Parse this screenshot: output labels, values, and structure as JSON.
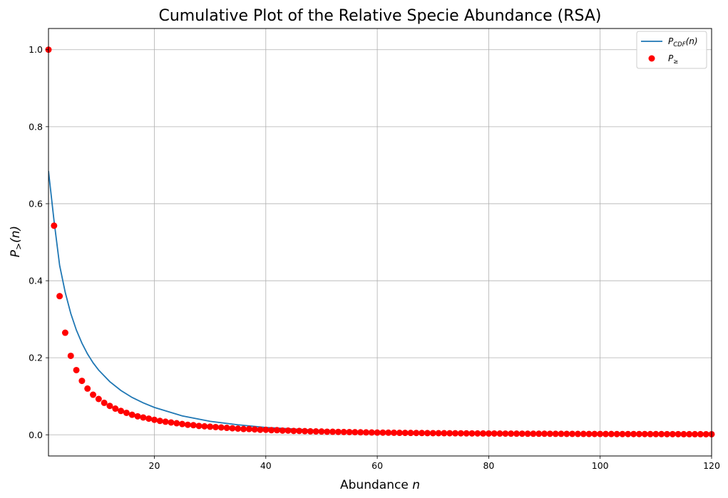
{
  "chart_data": {
    "type": "scatter",
    "title": "Cumulative Plot of the Relative Specie Abundance (RSA)",
    "xlabel_text": "Abundance ",
    "xlabel_var": "n",
    "ylabel_main": "P",
    "ylabel_sub": ">",
    "ylabel_arg": "(n)",
    "xlim": [
      1,
      120
    ],
    "ylim": [
      -0.055,
      1.055
    ],
    "x_ticks": [
      20,
      40,
      60,
      80,
      100,
      120
    ],
    "y_ticks": [
      0.0,
      0.2,
      0.4,
      0.6,
      0.8,
      1.0
    ],
    "x_tick_labels": [
      "20",
      "40",
      "60",
      "80",
      "100",
      "120"
    ],
    "y_tick_labels": [
      "0.0",
      "0.2",
      "0.4",
      "0.6",
      "0.8",
      "1.0"
    ],
    "grid": true,
    "legend_position": "top-right",
    "series": [
      {
        "kind": "line",
        "color": "#1f77b4",
        "legend_main": "P",
        "legend_sub": "CDF",
        "legend_arg": "(n)",
        "x": [
          1,
          2,
          3,
          4,
          5,
          6,
          7,
          8,
          9,
          10,
          12,
          14,
          16,
          18,
          20,
          25,
          30,
          35,
          40,
          45,
          50,
          60,
          70,
          80,
          90,
          100,
          110,
          120
        ],
        "y": [
          0.685,
          0.555,
          0.44,
          0.37,
          0.315,
          0.272,
          0.238,
          0.21,
          0.187,
          0.168,
          0.138,
          0.115,
          0.097,
          0.083,
          0.071,
          0.049,
          0.035,
          0.026,
          0.019,
          0.015,
          0.011,
          0.007,
          0.005,
          0.0035,
          0.0026,
          0.002,
          0.0016,
          0.0013
        ]
      },
      {
        "kind": "scatter",
        "color": "#ff0000",
        "legend_main": "P",
        "legend_sub": "≥",
        "x": [
          1,
          2,
          3,
          4,
          5,
          6,
          7,
          8,
          9,
          10,
          11,
          12,
          13,
          14,
          15,
          16,
          17,
          18,
          19,
          20,
          21,
          22,
          23,
          24,
          25,
          26,
          27,
          28,
          29,
          30,
          31,
          32,
          33,
          34,
          35,
          36,
          37,
          38,
          39,
          40,
          41,
          42,
          43,
          44,
          45,
          46,
          47,
          48,
          49,
          50,
          51,
          52,
          53,
          54,
          55,
          56,
          57,
          58,
          59,
          60,
          61,
          62,
          63,
          64,
          65,
          66,
          67,
          68,
          69,
          70,
          71,
          72,
          73,
          74,
          75,
          76,
          77,
          78,
          79,
          80,
          81,
          82,
          83,
          84,
          85,
          86,
          87,
          88,
          89,
          90,
          91,
          92,
          93,
          94,
          95,
          96,
          97,
          98,
          99,
          100,
          101,
          102,
          103,
          104,
          105,
          106,
          107,
          108,
          109,
          110,
          111,
          112,
          113,
          114,
          115,
          116,
          117,
          118,
          119,
          120
        ],
        "y": [
          1.0,
          0.543,
          0.36,
          0.265,
          0.205,
          0.168,
          0.14,
          0.12,
          0.104,
          0.093,
          0.083,
          0.075,
          0.068,
          0.062,
          0.057,
          0.052,
          0.048,
          0.045,
          0.042,
          0.039,
          0.036,
          0.034,
          0.032,
          0.03,
          0.028,
          0.026,
          0.025,
          0.023,
          0.022,
          0.021,
          0.02,
          0.019,
          0.018,
          0.017,
          0.016,
          0.015,
          0.015,
          0.014,
          0.013,
          0.013,
          0.012,
          0.012,
          0.011,
          0.011,
          0.01,
          0.01,
          0.0095,
          0.009,
          0.0088,
          0.0085,
          0.008,
          0.0078,
          0.0075,
          0.0072,
          0.007,
          0.0068,
          0.0065,
          0.0062,
          0.006,
          0.0058,
          0.0056,
          0.0055,
          0.0053,
          0.0051,
          0.005,
          0.0048,
          0.0047,
          0.0046,
          0.0044,
          0.0043,
          0.0042,
          0.0041,
          0.004,
          0.0039,
          0.0038,
          0.0037,
          0.0036,
          0.0035,
          0.0034,
          0.0033,
          0.0033,
          0.0032,
          0.0031,
          0.003,
          0.003,
          0.0029,
          0.0028,
          0.0028,
          0.0027,
          0.0027,
          0.0026,
          0.0025,
          0.0025,
          0.0024,
          0.0024,
          0.0023,
          0.0023,
          0.0022,
          0.0022,
          0.0022,
          0.0021,
          0.0021,
          0.002,
          0.002,
          0.002,
          0.0019,
          0.0019,
          0.0019,
          0.0018,
          0.0018,
          0.0018,
          0.0017,
          0.0017,
          0.0017,
          0.0016,
          0.0016,
          0.0016,
          0.0016,
          0.0015,
          0.0015
        ]
      }
    ]
  }
}
